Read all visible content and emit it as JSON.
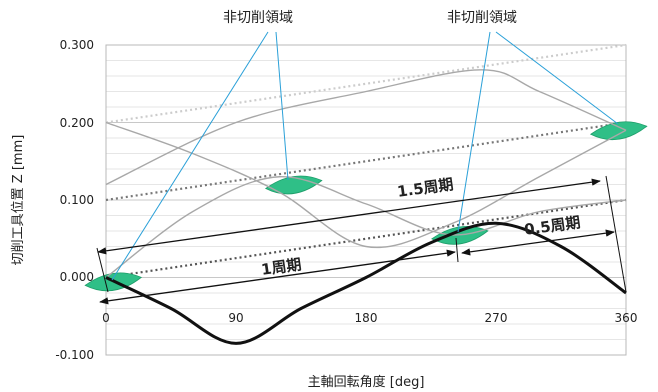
{
  "chart_data": {
    "type": "line",
    "xlabel": "主軸回転角度 [deg]",
    "ylabel": "切削工具位置 Z [mm]",
    "xlim": [
      0,
      360
    ],
    "ylim": [
      -0.1,
      0.3
    ],
    "x_ticks": [
      "0",
      "90",
      "180",
      "270",
      "360"
    ],
    "y_ticks": [
      "-0.100",
      "0.000",
      "0.100",
      "0.200",
      "0.300"
    ],
    "grid": true,
    "series": [
      {
        "role": "current-pass",
        "x": [
          0,
          45,
          90,
          135,
          180,
          225,
          270,
          315,
          360
        ],
        "y": [
          0.0,
          -0.04,
          -0.085,
          -0.04,
          0.0,
          0.045,
          0.07,
          0.04,
          -0.02
        ],
        "color": "#111111"
      },
      {
        "role": "previous-pass",
        "x": [
          0,
          60,
          120,
          180,
          240,
          300,
          360
        ],
        "y": [
          0.0,
          0.085,
          0.13,
          0.095,
          0.055,
          0.085,
          0.1
        ],
        "color": "#a8a8a8"
      },
      {
        "role": "two-passes-ago",
        "x": [
          0,
          60,
          120,
          180,
          240,
          300,
          360
        ],
        "y": [
          0.2,
          0.16,
          0.11,
          0.04,
          0.07,
          0.13,
          0.19
        ],
        "color": "#a8a8a8"
      },
      {
        "role": "three-passes-ago",
        "x": [
          0,
          90,
          180,
          260,
          300,
          360
        ],
        "y": [
          0.12,
          0.2,
          0.24,
          0.268,
          0.24,
          0.19
        ],
        "color": "#a8a8a8"
      }
    ],
    "feed_lines": [
      {
        "x": [
          0,
          360
        ],
        "y": [
          0.0,
          0.1
        ],
        "style": "dotted",
        "color": "#555555"
      },
      {
        "x": [
          0,
          360
        ],
        "y": [
          0.1,
          0.2
        ],
        "style": "dotted",
        "color": "#777777"
      },
      {
        "x": [
          0,
          360
        ],
        "y": [
          0.2,
          0.3
        ],
        "style": "dotted",
        "color": "#cccccc"
      }
    ],
    "uncut_regions": [
      {
        "x_center": 5,
        "y_center": -0.005
      },
      {
        "x_center": 130,
        "y_center": 0.12
      },
      {
        "x_center": 245,
        "y_center": 0.055
      },
      {
        "x_center": 355,
        "y_center": 0.19
      }
    ],
    "annotations": {
      "uncut_label": "非切削領域",
      "period_1": "1周期",
      "period_1_5": "1.5周期",
      "period_0_5": "0.5周期"
    }
  }
}
